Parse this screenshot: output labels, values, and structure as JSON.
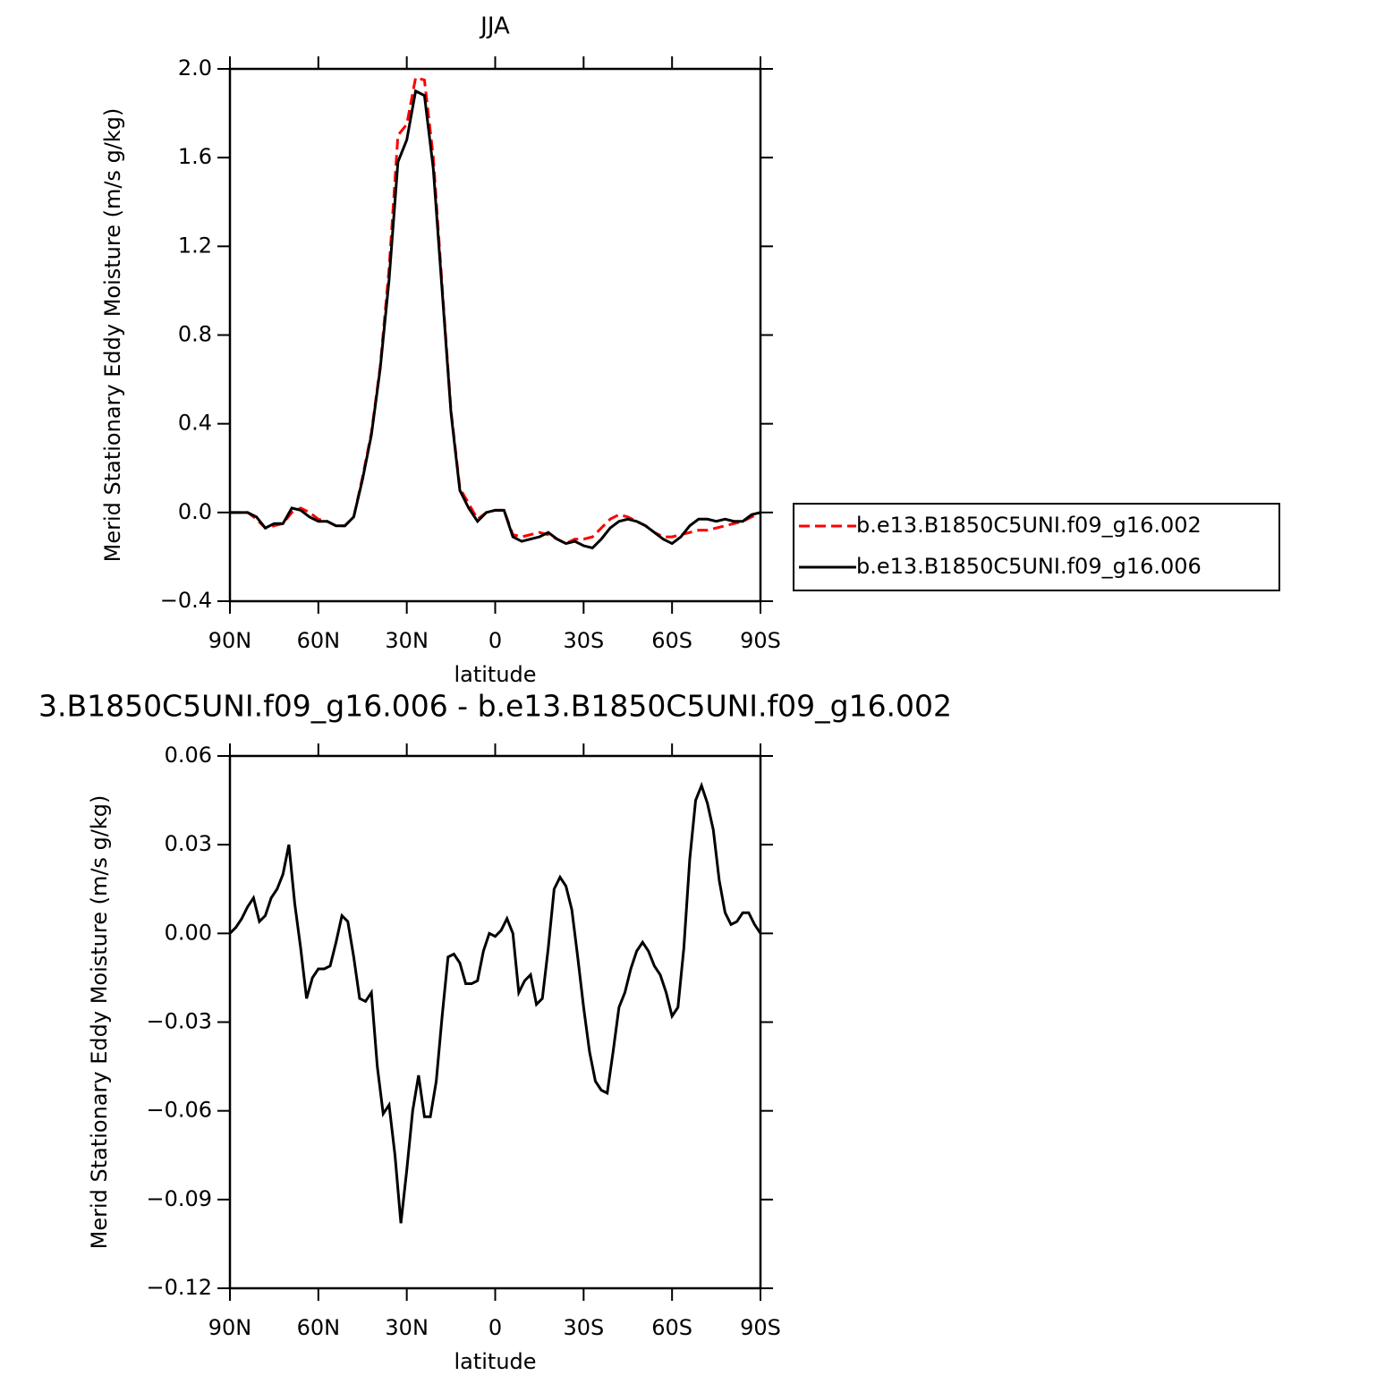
{
  "chart_data": [
    {
      "type": "line",
      "title": "JJA",
      "xlabel": "latitude",
      "ylabel": "Merid Stationary Eddy Moisture (m/s g/kg)",
      "x": [
        90,
        87,
        84,
        81,
        78,
        75,
        72,
        69,
        66,
        63,
        60,
        57,
        54,
        51,
        48,
        45,
        42,
        39,
        36,
        33,
        30,
        27,
        24,
        21,
        18,
        15,
        12,
        9,
        6,
        3,
        0,
        -3,
        -6,
        -9,
        -12,
        -15,
        -18,
        -21,
        -24,
        -27,
        -30,
        -33,
        -36,
        -39,
        -42,
        -45,
        -48,
        -51,
        -54,
        -57,
        -60,
        -63,
        -66,
        -69,
        -72,
        -75,
        -78,
        -81,
        -84,
        -87,
        -90
      ],
      "series": [
        {
          "name": "b.e13.B1850C5UNI.f09_g16.002",
          "color": "#ff0000",
          "line_style": "dashed",
          "values": [
            0,
            0,
            0,
            -0.03,
            -0.07,
            -0.06,
            -0.05,
            0.0,
            0.02,
            0.0,
            -0.03,
            -0.04,
            -0.06,
            -0.06,
            -0.02,
            0.16,
            0.36,
            0.66,
            1.1,
            1.7,
            1.75,
            1.96,
            1.95,
            1.6,
            1.02,
            0.46,
            0.11,
            0.04,
            -0.03,
            0.0,
            0.01,
            0.01,
            -0.1,
            -0.11,
            -0.1,
            -0.09,
            -0.1,
            -0.12,
            -0.14,
            -0.12,
            -0.12,
            -0.11,
            -0.07,
            -0.03,
            -0.01,
            -0.02,
            -0.04,
            -0.06,
            -0.09,
            -0.11,
            -0.11,
            -0.1,
            -0.09,
            -0.08,
            -0.08,
            -0.07,
            -0.06,
            -0.05,
            -0.04,
            -0.02,
            0
          ]
        },
        {
          "name": "b.e13.B1850C5UNI.f09_g16.006",
          "color": "#000000",
          "line_style": "solid",
          "values": [
            0,
            0,
            0,
            -0.02,
            -0.07,
            -0.05,
            -0.05,
            0.02,
            0.01,
            -0.02,
            -0.04,
            -0.04,
            -0.06,
            -0.06,
            -0.02,
            0.15,
            0.35,
            0.65,
            1.05,
            1.58,
            1.68,
            1.9,
            1.88,
            1.55,
            1.0,
            0.45,
            0.1,
            0.02,
            -0.04,
            0.0,
            0.01,
            0.01,
            -0.11,
            -0.13,
            -0.12,
            -0.11,
            -0.09,
            -0.12,
            -0.14,
            -0.13,
            -0.15,
            -0.16,
            -0.12,
            -0.07,
            -0.04,
            -0.03,
            -0.04,
            -0.06,
            -0.09,
            -0.12,
            -0.14,
            -0.11,
            -0.06,
            -0.03,
            -0.03,
            -0.04,
            -0.03,
            -0.04,
            -0.04,
            -0.01,
            0
          ]
        }
      ],
      "xlim": [
        90,
        -90
      ],
      "xticks": [
        {
          "value": 90,
          "label": "90N"
        },
        {
          "value": 60,
          "label": "60N"
        },
        {
          "value": 30,
          "label": "30N"
        },
        0,
        {
          "value": -30,
          "label": "30S"
        },
        {
          "value": -60,
          "label": "60S"
        },
        {
          "value": -90,
          "label": "90S"
        }
      ],
      "ylim": [
        -0.4,
        2
      ],
      "yticks": [
        {
          "value": -0.4,
          "label": "−0.4"
        },
        {
          "value": 0,
          "label": "0.0"
        },
        0.4,
        0.8,
        1.2,
        1.6,
        {
          "value": 2,
          "label": "2.0"
        }
      ],
      "legend": "outside-right"
    },
    {
      "type": "line",
      "title": "3.B1850C5UNI.f09_g16.006 - b.e13.B1850C5UNI.f09_g16.002",
      "xlabel": "latitude",
      "ylabel": "Merid Stationary Eddy Moisture (m/s g/kg)",
      "x": [
        90,
        88,
        86,
        84,
        82,
        80,
        78,
        76,
        74,
        72,
        70,
        68,
        66,
        64,
        62,
        60,
        58,
        56,
        54,
        52,
        50,
        48,
        46,
        44,
        42,
        40,
        38,
        36,
        34,
        32,
        30,
        28,
        26,
        24,
        22,
        20,
        18,
        16,
        14,
        12,
        10,
        8,
        6,
        4,
        2,
        0,
        -2,
        -4,
        -6,
        -8,
        -10,
        -12,
        -14,
        -16,
        -18,
        -20,
        -22,
        -24,
        -26,
        -28,
        -30,
        -32,
        -34,
        -36,
        -38,
        -40,
        -42,
        -44,
        -46,
        -48,
        -50,
        -52,
        -54,
        -56,
        -58,
        -60,
        -62,
        -64,
        -66,
        -68,
        -70,
        -72,
        -74,
        -76,
        -78,
        -80,
        -82,
        -84,
        -86,
        -88,
        -90
      ],
      "series": [
        {
          "color": "#000000",
          "line_style": "solid",
          "values": [
            0,
            0.002,
            0.005,
            0.009,
            0.012,
            0.004,
            0.006,
            0.012,
            0.015,
            0.02,
            0.03,
            0.01,
            -0.005,
            -0.022,
            -0.015,
            -0.012,
            -0.012,
            -0.011,
            -0.003,
            0.006,
            0.004,
            -0.008,
            -0.022,
            -0.023,
            -0.02,
            -0.045,
            -0.061,
            -0.058,
            -0.075,
            -0.098,
            -0.08,
            -0.06,
            -0.048,
            -0.062,
            -0.062,
            -0.05,
            -0.028,
            -0.008,
            -0.007,
            -0.01,
            -0.017,
            -0.017,
            -0.016,
            -0.006,
            0,
            -0.001,
            0.001,
            0.005,
            0.0,
            -0.02,
            -0.016,
            -0.014,
            -0.024,
            -0.022,
            -0.005,
            0.015,
            0.019,
            0.016,
            0.008,
            -0.008,
            -0.025,
            -0.04,
            -0.05,
            -0.053,
            -0.054,
            -0.04,
            -0.025,
            -0.02,
            -0.012,
            -0.006,
            -0.003,
            -0.006,
            -0.011,
            -0.014,
            -0.02,
            -0.028,
            -0.025,
            -0.005,
            0.025,
            0.045,
            0.05,
            0.044,
            0.035,
            0.018,
            0.007,
            0.003,
            0.004,
            0.007,
            0.007,
            0.003,
            0
          ]
        }
      ],
      "xlim": [
        90,
        -90
      ],
      "xticks": [
        {
          "value": 90,
          "label": "90N"
        },
        {
          "value": 60,
          "label": "60N"
        },
        {
          "value": 30,
          "label": "30N"
        },
        0,
        {
          "value": -30,
          "label": "30S"
        },
        {
          "value": -60,
          "label": "60S"
        },
        {
          "value": -90,
          "label": "90S"
        }
      ],
      "ylim": [
        -0.12,
        0.06
      ],
      "yticks": [
        {
          "value": -0.12,
          "label": "−0.12"
        },
        {
          "value": -0.09,
          "label": "−0.09"
        },
        {
          "value": -0.06,
          "label": "−0.06"
        },
        {
          "value": -0.03,
          "label": "−0.03"
        },
        {
          "value": 0,
          "label": "0.00"
        },
        0.03,
        0.06
      ]
    }
  ]
}
